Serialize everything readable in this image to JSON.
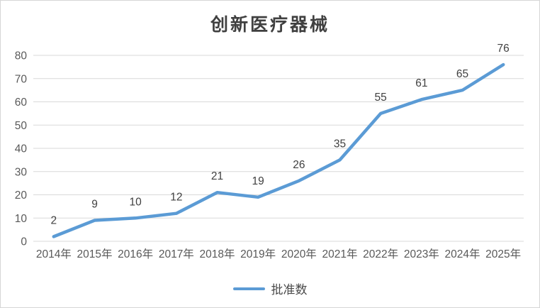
{
  "chart_data": {
    "type": "line",
    "title": "创新医疗器械",
    "categories": [
      "2014年",
      "2015年",
      "2016年",
      "2017年",
      "2018年",
      "2019年",
      "2020年",
      "2021年",
      "2022年",
      "2023年",
      "2024年",
      "2025年"
    ],
    "series": [
      {
        "name": "批准数",
        "values": [
          2,
          9,
          10,
          12,
          21,
          19,
          26,
          35,
          55,
          61,
          65,
          76
        ],
        "color": "#5B9BD5"
      }
    ],
    "xlabel": "",
    "ylabel": "",
    "ylim": [
      0,
      80
    ],
    "ytick_step": 10,
    "yticks": [
      0,
      10,
      20,
      30,
      40,
      50,
      60,
      70,
      80
    ],
    "grid": true,
    "data_labels": true,
    "legend_position": "bottom",
    "colors": {
      "series_line": "#5B9BD5",
      "gridline": "#D9D9D9",
      "axis_text": "#595959",
      "data_label_text": "#404040",
      "title_text": "#404040",
      "frame_border": "#D6D6D6",
      "background": "#FFFFFF"
    }
  }
}
